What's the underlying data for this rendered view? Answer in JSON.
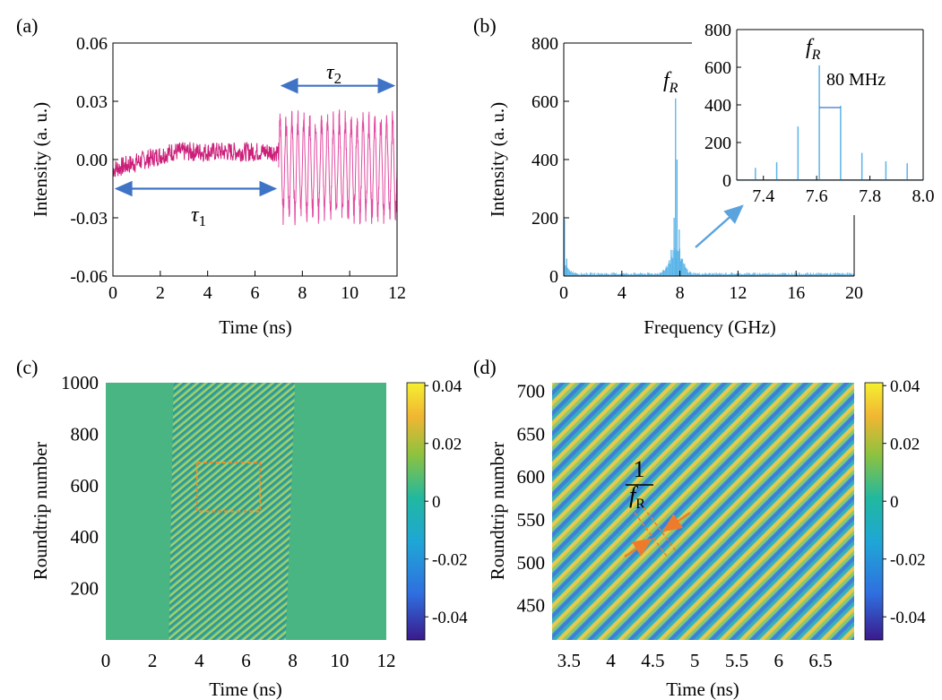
{
  "figure": {
    "panel_labels": [
      "(a)",
      "(b)",
      "(c)",
      "(d)"
    ]
  },
  "chart_data": [
    {
      "id": "a",
      "type": "line",
      "xlabel": "Time (ns)",
      "ylabel": "Intensity (a. u.)",
      "xlim": [
        0,
        12
      ],
      "ylim": [
        -0.06,
        0.06
      ],
      "xticks": [
        0,
        2,
        4,
        6,
        8,
        10,
        12
      ],
      "xtick_labels": [
        "0",
        "2",
        "4",
        "6",
        "8",
        "10",
        "12"
      ],
      "yticks": [
        -0.06,
        -0.03,
        0.0,
        0.03,
        0.06
      ],
      "ytick_labels": [
        "-0.06",
        "-0.03",
        "0.00",
        "0.03",
        "0.06"
      ],
      "series": [
        {
          "name": "tau1 regime",
          "color": "#cc1f7a",
          "x_range": [
            0,
            7.0
          ],
          "baseline_start": -0.005,
          "baseline_end": 0.004,
          "amplitude": 0.005
        },
        {
          "name": "tau2 regime",
          "color": "#e24aa0",
          "x_range": [
            7.0,
            12.0
          ],
          "baseline": -0.004,
          "amplitude": 0.03,
          "period_ns": 0.125
        }
      ],
      "annotations": [
        {
          "text": "τ",
          "sub": "1",
          "span": [
            0,
            7.0
          ],
          "y": -0.015
        },
        {
          "text": "τ",
          "sub": "2",
          "span": [
            7.0,
            12.0
          ],
          "y": 0.038
        }
      ],
      "arrow_color": "#3f73c6"
    },
    {
      "id": "b",
      "type": "bar",
      "xlabel": "Frequency (GHz)",
      "ylabel": "Intensity (a. u.)",
      "xlim": [
        0,
        20
      ],
      "ylim": [
        0,
        800
      ],
      "xticks": [
        0,
        4,
        8,
        12,
        16,
        20
      ],
      "xtick_labels": [
        "0",
        "4",
        "8",
        "12",
        "16",
        "20"
      ],
      "yticks": [
        0,
        200,
        400,
        600,
        800
      ],
      "ytick_labels": [
        "0",
        "200",
        "400",
        "600",
        "800"
      ],
      "color": "#5ab4e8",
      "peaks": [
        {
          "x": 0.05,
          "y": 195
        },
        {
          "x": 0.2,
          "y": 60
        },
        {
          "x": 7.4,
          "y": 90
        },
        {
          "x": 7.6,
          "y": 200
        },
        {
          "x": 7.7,
          "y": 610
        },
        {
          "x": 7.8,
          "y": 400
        },
        {
          "x": 7.95,
          "y": 160
        },
        {
          "x": 8.1,
          "y": 60
        }
      ],
      "peak_label": "f",
      "peak_label_sub": "R",
      "inset": {
        "xlim": [
          7.3,
          8.0
        ],
        "ylim": [
          0,
          800
        ],
        "xticks": [
          7.4,
          7.6,
          7.8,
          8.0
        ],
        "xtick_labels": [
          "7.4",
          "7.6",
          "7.8",
          "8.0"
        ],
        "yticks": [
          0,
          200,
          400,
          600,
          800
        ],
        "ytick_labels": [
          "0",
          "200",
          "400",
          "600",
          "800"
        ],
        "lines": [
          {
            "x": 7.37,
            "y": 65
          },
          {
            "x": 7.45,
            "y": 95
          },
          {
            "x": 7.53,
            "y": 285
          },
          {
            "x": 7.61,
            "y": 610
          },
          {
            "x": 7.69,
            "y": 395
          },
          {
            "x": 7.77,
            "y": 145
          },
          {
            "x": 7.86,
            "y": 100
          },
          {
            "x": 7.94,
            "y": 90
          }
        ],
        "peak_label": "f",
        "peak_label_sub": "R",
        "spacing_label": "80 MHz",
        "spacing_span": [
          7.61,
          7.69
        ]
      }
    },
    {
      "id": "c",
      "type": "heatmap",
      "xlabel": "Time (ns)",
      "ylabel": "Roundtrip number",
      "xlim": [
        0,
        12
      ],
      "ylim": [
        0,
        1000
      ],
      "xticks": [
        0,
        2,
        4,
        6,
        8,
        10,
        12
      ],
      "xtick_labels": [
        "0",
        "2",
        "4",
        "6",
        "8",
        "10",
        "12"
      ],
      "yticks": [
        200,
        400,
        600,
        800,
        1000
      ],
      "ytick_labels": [
        "200",
        "400",
        "600",
        "800",
        "1000"
      ],
      "colorbar": {
        "min": -0.048,
        "max": 0.041,
        "ticks": [
          -0.04,
          -0.02,
          0,
          0.02,
          0.04
        ],
        "tick_labels": [
          "-0.04",
          "-0.02",
          "0",
          "0.02",
          "0.04"
        ]
      },
      "striped_region": {
        "x_start_bottom": 2.7,
        "x_start_top": 2.9,
        "x_end_bottom": 7.7,
        "x_end_top": 8.1
      },
      "roi_box": {
        "x": [
          3.9,
          6.6
        ],
        "y": [
          500,
          690
        ],
        "color": "#f08a2b"
      }
    },
    {
      "id": "d",
      "type": "heatmap",
      "xlabel": "Time (ns)",
      "ylabel": "Roundtrip number",
      "xlim": [
        3.3,
        6.9
      ],
      "ylim": [
        410,
        710
      ],
      "xticks": [
        3.5,
        4,
        4.5,
        5,
        5.5,
        6,
        6.5
      ],
      "xtick_labels": [
        "3.5",
        "4",
        "4.5",
        "5",
        "5.5",
        "6",
        "6.5"
      ],
      "yticks": [
        450,
        500,
        550,
        600,
        650,
        700
      ],
      "ytick_labels": [
        "450",
        "500",
        "550",
        "600",
        "650",
        "700"
      ],
      "colorbar": {
        "min": -0.048,
        "max": 0.041,
        "ticks": [
          -0.04,
          -0.02,
          0,
          0.02,
          0.04
        ],
        "tick_labels": [
          "-0.04",
          "-0.02",
          "0",
          "0.02",
          "0.04"
        ]
      },
      "annotation": {
        "numerator": "1",
        "denominator": "f",
        "denominator_sub": "R"
      },
      "arrow_color": "#ee7b2c"
    }
  ]
}
